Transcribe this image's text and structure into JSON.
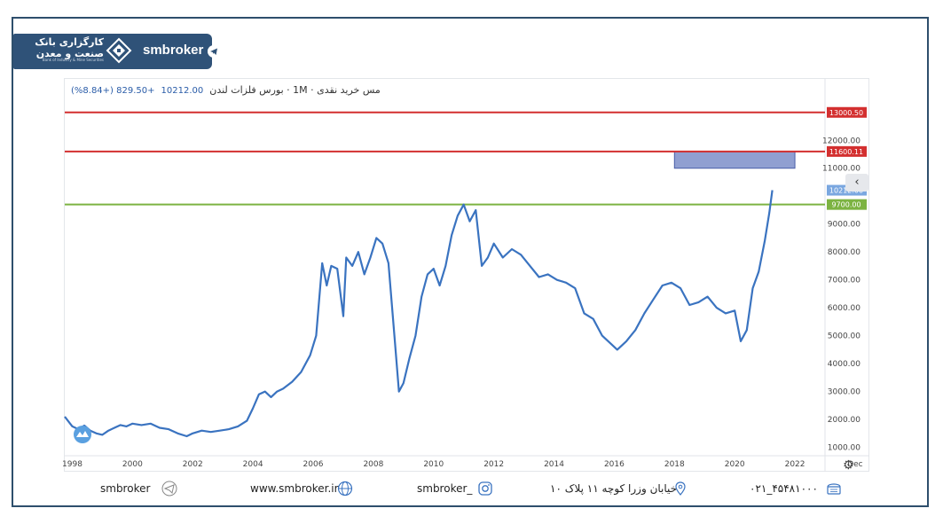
{
  "brand": {
    "bank_name_line1": "کارگزاری بانک",
    "bank_name_line2": "صنعت و معدن",
    "bank_sub": "Bank of Industry & Mine Securities",
    "name": "smbroker"
  },
  "chart_header": {
    "title": "مس خرید نقدی · 1M · بورس فلزات لندن",
    "value": "10212.00",
    "change": "+829.50 (+8.84%)"
  },
  "chart_data": {
    "type": "line",
    "title": "مس خرید نقدی · 1M · بورس فلزات لندن",
    "x_ticks": [
      "1998",
      "2000",
      "2002",
      "2004",
      "2006",
      "2008",
      "2010",
      "2012",
      "2014",
      "2016",
      "2018",
      "2020",
      "2022",
      "Dec"
    ],
    "y_ticks": [
      "1000.00",
      "2000.00",
      "3000.00",
      "4000.00",
      "5000.00",
      "6000.00",
      "7000.00",
      "8000.00",
      "9000.00",
      "11000.00",
      "12000.00"
    ],
    "ylim": [
      700,
      14200
    ],
    "xlim": [
      1997.75,
      2023.0
    ],
    "series": [
      {
        "color": "#3a73c0",
        "x": [
          1997.75,
          1998.0,
          1998.2,
          1998.4,
          1998.6,
          1998.8,
          1999.0,
          1999.2,
          1999.4,
          1999.6,
          1999.8,
          2000.0,
          2000.3,
          2000.6,
          2000.9,
          2001.2,
          2001.5,
          2001.8,
          2002.0,
          2002.3,
          2002.6,
          2002.9,
          2003.2,
          2003.5,
          2003.8,
          2004.0,
          2004.2,
          2004.4,
          2004.6,
          2004.8,
          2005.0,
          2005.3,
          2005.6,
          2005.9,
          2006.1,
          2006.3,
          2006.45,
          2006.6,
          2006.8,
          2007.0,
          2007.1,
          2007.3,
          2007.5,
          2007.7,
          2007.9,
          2008.1,
          2008.3,
          2008.5,
          2008.7,
          2008.85,
          2009.0,
          2009.2,
          2009.4,
          2009.6,
          2009.8,
          2010.0,
          2010.2,
          2010.4,
          2010.6,
          2010.8,
          2011.0,
          2011.2,
          2011.4,
          2011.6,
          2011.8,
          2012.0,
          2012.3,
          2012.6,
          2012.9,
          2013.2,
          2013.5,
          2013.8,
          2014.1,
          2014.4,
          2014.7,
          2015.0,
          2015.3,
          2015.6,
          2015.9,
          2016.1,
          2016.4,
          2016.7,
          2017.0,
          2017.3,
          2017.6,
          2017.9,
          2018.2,
          2018.5,
          2018.8,
          2019.1,
          2019.4,
          2019.7,
          2020.0,
          2020.2,
          2020.4,
          2020.6,
          2020.8,
          2021.0,
          2021.15,
          2021.25
        ],
        "values": [
          2100,
          1750,
          1650,
          1780,
          1600,
          1500,
          1450,
          1600,
          1700,
          1800,
          1750,
          1850,
          1800,
          1850,
          1700,
          1650,
          1500,
          1400,
          1500,
          1600,
          1550,
          1600,
          1650,
          1750,
          1950,
          2400,
          2900,
          3000,
          2800,
          3000,
          3100,
          3350,
          3700,
          4300,
          5000,
          7600,
          6800,
          7500,
          7400,
          5700,
          7800,
          7500,
          8000,
          7200,
          7800,
          8500,
          8300,
          7600,
          5000,
          3000,
          3300,
          4200,
          5000,
          6400,
          7200,
          7400,
          6800,
          7500,
          8600,
          9300,
          9700,
          9100,
          9500,
          7500,
          7800,
          8300,
          7800,
          8100,
          7900,
          7500,
          7100,
          7200,
          7000,
          6900,
          6700,
          5800,
          5600,
          5000,
          4700,
          4500,
          4800,
          5200,
          5800,
          6300,
          6800,
          6900,
          6700,
          6100,
          6200,
          6400,
          6000,
          5800,
          5900,
          4800,
          5200,
          6700,
          7300,
          8400,
          9400,
          10212
        ]
      }
    ],
    "h_lines": [
      {
        "value": 13000.5,
        "label": "13000.50",
        "color": "#d32f2f"
      },
      {
        "value": 11600.11,
        "label": "11600.11",
        "color": "#d32f2f"
      },
      {
        "value": 9700.0,
        "label": "9700.00",
        "color": "#7cb342"
      }
    ],
    "last_label": "10212.00",
    "zone": {
      "x0": 2018.0,
      "x1": 2022.0,
      "y0": 11000,
      "y1": 11600,
      "color": "#7c8ec9"
    }
  },
  "footer": {
    "telegram": "smbroker",
    "website": "www.smbroker.ir",
    "instagram": "smbroker_",
    "address": "خیابان وزرا کوچه ۱۱ پلاک ۱۰",
    "phone": "۰۲۱_۴۵۴۸۱۰۰۰"
  }
}
